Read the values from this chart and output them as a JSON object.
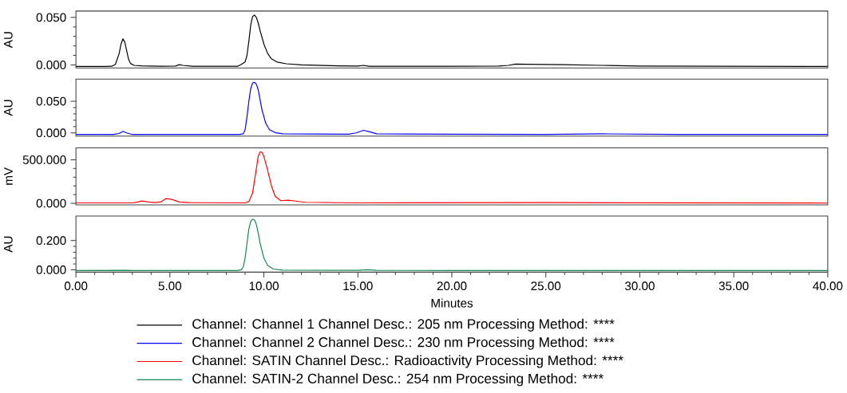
{
  "chart_data": [
    {
      "type": "line",
      "ylabel": "AU",
      "xlim": [
        0,
        40
      ],
      "ylim": [
        -0.0033,
        0.0567
      ],
      "yticks": [
        {
          "value": 0,
          "label": "0.000"
        },
        {
          "value": 0.05,
          "label": "0.050"
        }
      ],
      "tick_labels": "y",
      "legend": "bottom",
      "line_style": "solid",
      "marker": "none",
      "series": [
        {
          "name": "Channel: Channel 1  Channel Desc.: 205 nm  Processing Method: ****",
          "color": "#000000",
          "x": [
            0,
            1.5,
            1.9,
            2.1,
            2.3,
            2.4,
            2.5,
            2.6,
            2.7,
            2.8,
            2.9,
            3.1,
            3.5,
            4.5,
            5.3,
            5.5,
            5.7,
            6.2,
            8.6,
            8.8,
            9.0,
            9.1,
            9.2,
            9.3,
            9.4,
            9.5,
            9.6,
            9.7,
            9.8,
            10.0,
            10.2,
            10.4,
            10.7,
            11.2,
            12,
            14,
            15.0,
            15.3,
            15.6,
            20,
            22.5,
            23.0,
            23.4,
            24,
            26,
            28,
            30,
            40
          ],
          "values": [
            -0.0017,
            -0.0017,
            -0.0015,
            0.0005,
            0.012,
            0.022,
            0.0275,
            0.024,
            0.015,
            0.006,
            0.0015,
            -0.0005,
            -0.001,
            -0.0015,
            -0.0012,
            0.0002,
            -0.0005,
            -0.0015,
            -0.0015,
            0.0005,
            0.003,
            0.01,
            0.025,
            0.042,
            0.051,
            0.0525,
            0.05,
            0.044,
            0.036,
            0.022,
            0.012,
            0.0065,
            0.003,
            0.0012,
            0.0,
            -0.001,
            -0.0012,
            -0.0005,
            -0.0015,
            -0.0015,
            -0.0012,
            -0.0005,
            0.0008,
            0.0007,
            0.0002,
            -0.0005,
            -0.0012,
            -0.0017
          ]
        }
      ]
    },
    {
      "type": "line",
      "ylabel": "AU",
      "xlim": [
        0,
        40
      ],
      "ylim": [
        -0.005,
        0.085
      ],
      "yticks": [
        {
          "value": 0,
          "label": "0.000"
        },
        {
          "value": 0.05,
          "label": "0.050"
        }
      ],
      "tick_labels": "y",
      "legend": "bottom",
      "line_style": "solid",
      "marker": "none",
      "series": [
        {
          "name": "Channel: Channel 2  Channel Desc.: 230 nm  Processing Method: ****",
          "color": "#0000ff",
          "x": [
            0,
            2.0,
            2.3,
            2.5,
            2.7,
            3.0,
            8.7,
            8.9,
            9.0,
            9.1,
            9.2,
            9.3,
            9.4,
            9.5,
            9.6,
            9.7,
            9.8,
            9.9,
            10.1,
            10.3,
            10.6,
            11,
            14.5,
            14.9,
            15.3,
            15.6,
            16,
            20,
            25,
            28,
            32,
            40
          ],
          "values": [
            -0.0025,
            -0.0025,
            -0.001,
            0.0025,
            0.0,
            -0.0025,
            -0.0025,
            -0.0015,
            0.005,
            0.025,
            0.05,
            0.07,
            0.079,
            0.08,
            0.077,
            0.068,
            0.052,
            0.036,
            0.015,
            0.005,
            0.0005,
            -0.0015,
            -0.002,
            0.0,
            0.004,
            0.002,
            -0.0015,
            -0.002,
            -0.0025,
            -0.0015,
            -0.0025,
            -0.0025
          ]
        }
      ]
    },
    {
      "type": "line",
      "ylabel": "mV",
      "xlim": [
        0,
        40
      ],
      "ylim": [
        -18,
        636
      ],
      "yticks": [
        {
          "value": 0,
          "label": "0.000"
        },
        {
          "value": 500,
          "label": "500.000"
        }
      ],
      "tick_labels": "y",
      "legend": "bottom",
      "line_style": "solid",
      "marker": "none",
      "series": [
        {
          "name": "Channel: SATIN   Channel Desc.: Radioactivity  Processing Method: ****",
          "color": "#ff0000",
          "x": [
            0,
            3.0,
            3.3,
            3.5,
            3.8,
            4.2,
            4.5,
            4.8,
            5.1,
            5.5,
            6,
            9.0,
            9.2,
            9.4,
            9.6,
            9.7,
            9.8,
            9.9,
            10.0,
            10.2,
            10.4,
            10.6,
            10.9,
            11.3,
            11.6,
            12.2,
            15,
            25,
            40
          ],
          "values": [
            5,
            5,
            15,
            27,
            18,
            8,
            15,
            55,
            45,
            15,
            8,
            5,
            20,
            120,
            400,
            540,
            591,
            585,
            540,
            380,
            200,
            80,
            30,
            36,
            28,
            12,
            5,
            8,
            3
          ]
        }
      ]
    },
    {
      "type": "line",
      "ylabel": "AU",
      "xlabel": "Minutes",
      "xlim": [
        0,
        40
      ],
      "ylim": [
        -0.016,
        0.368
      ],
      "yticks": [
        {
          "value": 0,
          "label": "0.000"
        },
        {
          "value": 0.2,
          "label": "0.200"
        }
      ],
      "xticks": [
        {
          "value": 0,
          "label": "0.00"
        },
        {
          "value": 5,
          "label": "5.00"
        },
        {
          "value": 10,
          "label": "10.00"
        },
        {
          "value": 15,
          "label": "15.00"
        },
        {
          "value": 20,
          "label": "20.00"
        },
        {
          "value": 25,
          "label": "25.00"
        },
        {
          "value": 30,
          "label": "30.00"
        },
        {
          "value": 35,
          "label": "35.00"
        },
        {
          "value": 40,
          "label": "40.00"
        }
      ],
      "legend": "bottom",
      "line_style": "solid",
      "marker": "none",
      "series": [
        {
          "name": "Channel: SATIN-2   Channel Desc.: 254 nm  Processing Method: ****",
          "color": "#13884f",
          "x": [
            0,
            2.7,
            3.0,
            8.6,
            8.8,
            8.9,
            9.0,
            9.1,
            9.2,
            9.3,
            9.4,
            9.5,
            9.6,
            9.7,
            9.8,
            10.0,
            10.2,
            10.5,
            11,
            15,
            15.5,
            16,
            20,
            40
          ],
          "values": [
            -0.005,
            -0.004,
            -0.005,
            -0.005,
            0.0,
            0.02,
            0.08,
            0.18,
            0.28,
            0.33,
            0.346,
            0.34,
            0.31,
            0.25,
            0.18,
            0.08,
            0.03,
            0.005,
            -0.002,
            -0.004,
            0.0,
            -0.004,
            -0.005,
            -0.005
          ]
        }
      ]
    }
  ]
}
